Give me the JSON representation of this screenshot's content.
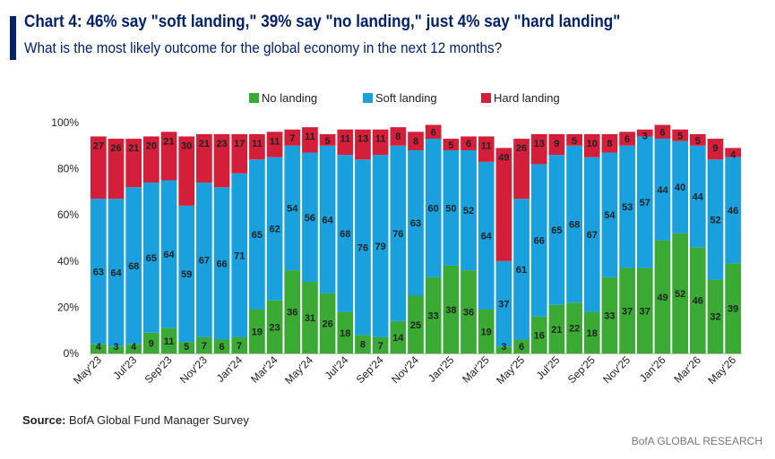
{
  "header": {
    "title": "Chart 4: 46% say \"soft landing,\" 39% say \"no landing,\" just 4% say \"hard landing\"",
    "subtitle": "What is the most likely outcome for the global economy in the next 12 months?"
  },
  "footer": {
    "source_label": "Source:",
    "source_text": " BofA Global Fund Manager Survey",
    "brand": "BofA GLOBAL RESEARCH"
  },
  "colors": {
    "no_landing": "#3aaa35",
    "soft_landing": "#1aa0dd",
    "hard_landing": "#d31f3a",
    "accent": "#012169"
  },
  "chart_data": {
    "type": "bar",
    "stacked": true,
    "legend_position": "top-center",
    "ylim": [
      0,
      100
    ],
    "yticks": [
      "0%",
      "20%",
      "40%",
      "60%",
      "80%",
      "100%"
    ],
    "ytick_values": [
      0,
      20,
      40,
      60,
      80,
      100
    ],
    "xtick_labels": [
      "May'23",
      "Jul'23",
      "Sep'23",
      "Nov'23",
      "Jan'24",
      "Mar'24",
      "May'24",
      "Jul'24",
      "Sep'24",
      "Nov'24",
      "Jan'25",
      "Mar'25",
      "May'25",
      "Jul'25",
      "Sep'25",
      "Nov'25",
      "Jan'26",
      "Mar'26",
      "May'26"
    ],
    "categories": [
      "May'23",
      "Jun'23",
      "Jul'23",
      "Aug'23",
      "Sep'23",
      "Oct'23",
      "Nov'23",
      "Dec'23",
      "Jan'24",
      "Feb'24",
      "Mar'24",
      "Apr'24",
      "May'24",
      "Jun'24",
      "Jul'24",
      "Aug'24",
      "Sep'24",
      "Oct'24",
      "Nov'24",
      "Dec'24",
      "Jan'25",
      "Feb'25",
      "Mar'25",
      "Apr'25",
      "May'25",
      "Jun'25",
      "Jul'25",
      "Aug'25",
      "Sep'25",
      "Oct'25",
      "Nov'25",
      "Dec'25",
      "Jan'26",
      "Feb'26",
      "Mar'26",
      "Apr'26",
      "May'26"
    ],
    "series": [
      {
        "name": "No landing",
        "values": [
          4,
          3,
          4,
          9,
          11,
          5,
          7,
          6,
          7,
          19,
          23,
          36,
          31,
          26,
          18,
          8,
          7,
          14,
          25,
          33,
          38,
          36,
          19,
          3,
          6,
          16,
          21,
          22,
          18,
          33,
          37,
          37,
          49,
          52,
          46,
          32,
          39
        ]
      },
      {
        "name": "Soft landing",
        "values": [
          63,
          64,
          68,
          65,
          64,
          59,
          67,
          66,
          71,
          65,
          62,
          54,
          56,
          64,
          68,
          76,
          79,
          76,
          63,
          60,
          50,
          52,
          64,
          37,
          61,
          66,
          65,
          68,
          67,
          54,
          53,
          57,
          44,
          40,
          44,
          52,
          46
        ]
      },
      {
        "name": "Hard landing",
        "values": [
          27,
          26,
          21,
          20,
          21,
          30,
          21,
          23,
          17,
          11,
          11,
          7,
          11,
          5,
          11,
          13,
          11,
          8,
          8,
          6,
          5,
          6,
          11,
          49,
          26,
          13,
          9,
          5,
          10,
          8,
          6,
          3,
          6,
          5,
          5,
          9,
          4
        ]
      }
    ]
  }
}
